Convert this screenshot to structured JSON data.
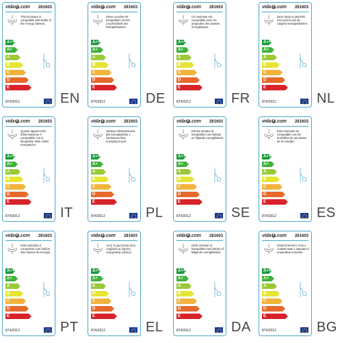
{
  "brand": {
    "logo_text": "vidaXL.com"
  },
  "product_code": "281603",
  "regulation": "874/2012",
  "colors": {
    "frame": "#4aa7c9",
    "classes": [
      "#1a9a3a",
      "#3fb23a",
      "#9bc93a",
      "#e6e533",
      "#f1b33c",
      "#e66a2b",
      "#d8232a"
    ]
  },
  "energy_classes": [
    "A++",
    "A+",
    "A",
    "B",
    "C",
    "D",
    "E"
  ],
  "labels": [
    {
      "lang": "EN",
      "text": "This luminaire is compatible with bulbs of the energy classes:"
    },
    {
      "lang": "DE",
      "text": "Diese Leuchte ist kompatibel mit den Leuchtmitteln der Energieklassen:"
    },
    {
      "lang": "FR",
      "text": "Ce luminaire est compatible avec les ampoules des classes énergétiques:"
    },
    {
      "lang": "NL",
      "text": "Deze lamp is geschikt voor peren van de volgend energieklasses:"
    },
    {
      "lang": "IT",
      "text": "Questo apparecchio d'illuminazione è compatibile con le lampadine delle classi energetiche:"
    },
    {
      "lang": "PL",
      "text": "Oprawa oświetleniowa jest kompatybilna z żarówkami klas energetycznych:"
    },
    {
      "lang": "SE",
      "text": "Denna armatur är kompatibel med lampor av följande energiklasser:"
    },
    {
      "lang": "ES",
      "text": "Esta luminaria es compatible con las bombillas de las clases de la energía:"
    },
    {
      "lang": "PT",
      "text": "Esta luminária é compatível com bulbos das classes de energia:"
    },
    {
      "lang": "EL",
      "text": "Αυτό το φωτιστικό είναι συμβατό με λάμπες ενεργειακής κλάσης:"
    },
    {
      "lang": "DA",
      "text": "Dette armatur er kompatibel med lampe af følgende energiklasser:"
    },
    {
      "lang": "BG",
      "text": "Осветителното тяло е съвместимо с крушки от енергийни класове:"
    }
  ]
}
